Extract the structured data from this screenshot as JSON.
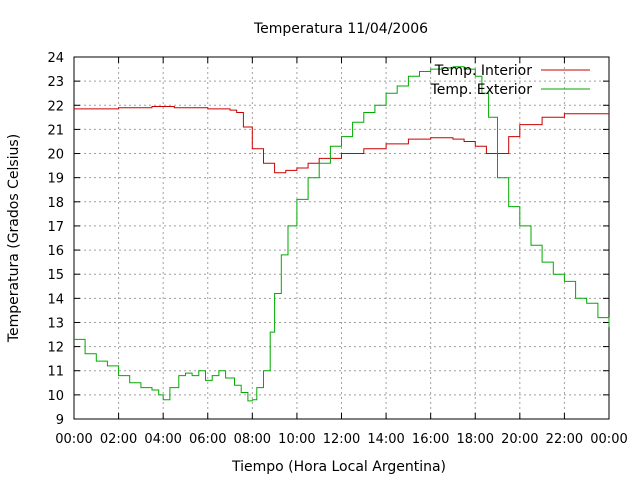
{
  "chart_data": {
    "type": "line",
    "title": "Temperatura 11/04/2006",
    "xlabel": "Tiempo (Hora Local Argentina)",
    "ylabel": "Temperatura (Grados Celsius)",
    "xlim": [
      0,
      24
    ],
    "ylim": [
      9,
      24
    ],
    "x_tick_values": [
      0,
      2,
      4,
      6,
      8,
      10,
      12,
      14,
      16,
      18,
      20,
      22,
      24
    ],
    "x_tick_labels": [
      "00:00",
      "02:00",
      "04:00",
      "06:00",
      "08:00",
      "10:00",
      "12:00",
      "14:00",
      "16:00",
      "18:00",
      "20:00",
      "22:00",
      "00:00"
    ],
    "y_ticks": [
      9,
      10,
      11,
      12,
      13,
      14,
      15,
      16,
      17,
      18,
      19,
      20,
      21,
      22,
      23,
      24
    ],
    "grid": true,
    "legend_position": "top-right",
    "series": [
      {
        "name": "Temp. Interior",
        "color": "#cc0000",
        "x": [
          0,
          1,
          2,
          3,
          3.5,
          4,
          4.5,
          5,
          6,
          6.5,
          7,
          7.3,
          7.6,
          8,
          8.5,
          9,
          9.5,
          10,
          10.5,
          11,
          12,
          13,
          14,
          15,
          16,
          17,
          17.5,
          18,
          18.5,
          19,
          19.5,
          20,
          21,
          22,
          23,
          24
        ],
        "y": [
          21.85,
          21.85,
          21.9,
          21.9,
          21.95,
          21.95,
          21.9,
          21.9,
          21.85,
          21.85,
          21.8,
          21.7,
          21.1,
          20.2,
          19.6,
          19.2,
          19.3,
          19.4,
          19.6,
          19.8,
          20.0,
          20.2,
          20.4,
          20.6,
          20.65,
          20.6,
          20.5,
          20.3,
          20.0,
          20.0,
          20.7,
          21.2,
          21.5,
          21.65,
          21.65,
          21.65
        ]
      },
      {
        "name": "Temp. Exterior",
        "color": "#00aa00",
        "x": [
          0,
          0.5,
          1,
          1.5,
          2,
          2.5,
          3,
          3.5,
          3.8,
          4.0,
          4.3,
          4.7,
          5.0,
          5.3,
          5.6,
          5.9,
          6.2,
          6.5,
          6.8,
          7.2,
          7.5,
          7.8,
          8.0,
          8.2,
          8.5,
          8.8,
          9.0,
          9.3,
          9.6,
          10.0,
          10.5,
          11.0,
          11.5,
          12.0,
          12.5,
          13.0,
          13.5,
          14.0,
          14.5,
          15.0,
          15.5,
          16.0,
          16.5,
          17.0,
          17.5,
          18.0,
          18.3,
          18.6,
          19.0,
          19.5,
          20.0,
          20.5,
          21.0,
          21.5,
          22.0,
          22.5,
          23.0,
          23.5,
          24.0
        ],
        "y": [
          12.3,
          11.7,
          11.4,
          11.2,
          10.8,
          10.5,
          10.3,
          10.2,
          10.0,
          9.8,
          10.3,
          10.8,
          10.9,
          10.8,
          11.0,
          10.6,
          10.8,
          11.0,
          10.7,
          10.4,
          10.1,
          9.75,
          9.8,
          10.3,
          11.0,
          12.6,
          14.2,
          15.8,
          17.0,
          18.1,
          19.0,
          19.6,
          20.3,
          20.7,
          21.3,
          21.7,
          22.0,
          22.5,
          22.8,
          23.2,
          23.4,
          23.5,
          23.55,
          23.6,
          23.5,
          23.2,
          22.5,
          21.5,
          19.0,
          17.8,
          17.0,
          16.2,
          15.5,
          15.0,
          14.7,
          14.0,
          13.8,
          13.2,
          12.8
        ]
      }
    ]
  }
}
